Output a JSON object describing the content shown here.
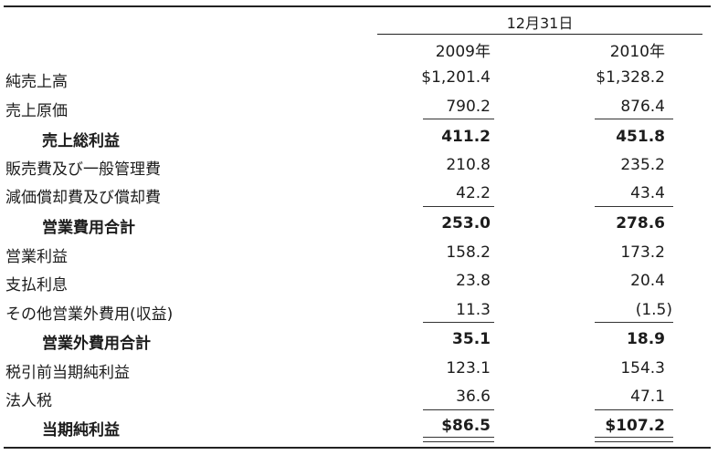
{
  "header": {
    "period": "12月31日",
    "year1": "2009年",
    "year2": "2010年"
  },
  "rows": [
    {
      "label": "純売上高",
      "v2009": "$1,201.4",
      "v2010": "$1,328.2",
      "total": false
    },
    {
      "label": "売上原価",
      "v2009": "790.2",
      "v2010": "876.4",
      "total": false
    },
    {
      "label": "売上総利益",
      "v2009": "411.2",
      "v2010": "451.8",
      "total": true
    },
    {
      "label": "販売費及び一般管理費",
      "v2009": "210.8",
      "v2010": "235.2",
      "total": false
    },
    {
      "label": "減価償却費及び償却費",
      "v2009": "42.2",
      "v2010": "43.4",
      "total": false
    },
    {
      "label": "営業費用合計",
      "v2009": "253.0",
      "v2010": "278.6",
      "total": true
    },
    {
      "label": "営業利益",
      "v2009": "158.2",
      "v2010": "173.2",
      "total": false
    },
    {
      "label": "支払利息",
      "v2009": "23.8",
      "v2010": "20.4",
      "total": false
    },
    {
      "label": "その他営業外費用(収益)",
      "v2009": "11.3",
      "v2010": "(1.5)",
      "total": false
    },
    {
      "label": "営業外費用合計",
      "v2009": "35.1",
      "v2010": "18.9",
      "total": true
    },
    {
      "label": "税引前当期純利益",
      "v2009": "123.1",
      "v2010": "154.3",
      "total": false
    },
    {
      "label": "法人税",
      "v2009": "36.6",
      "v2010": "47.1",
      "total": false
    },
    {
      "label": "当期純利益",
      "v2009": "$86.5",
      "v2010": "$107.2",
      "total": true
    }
  ]
}
